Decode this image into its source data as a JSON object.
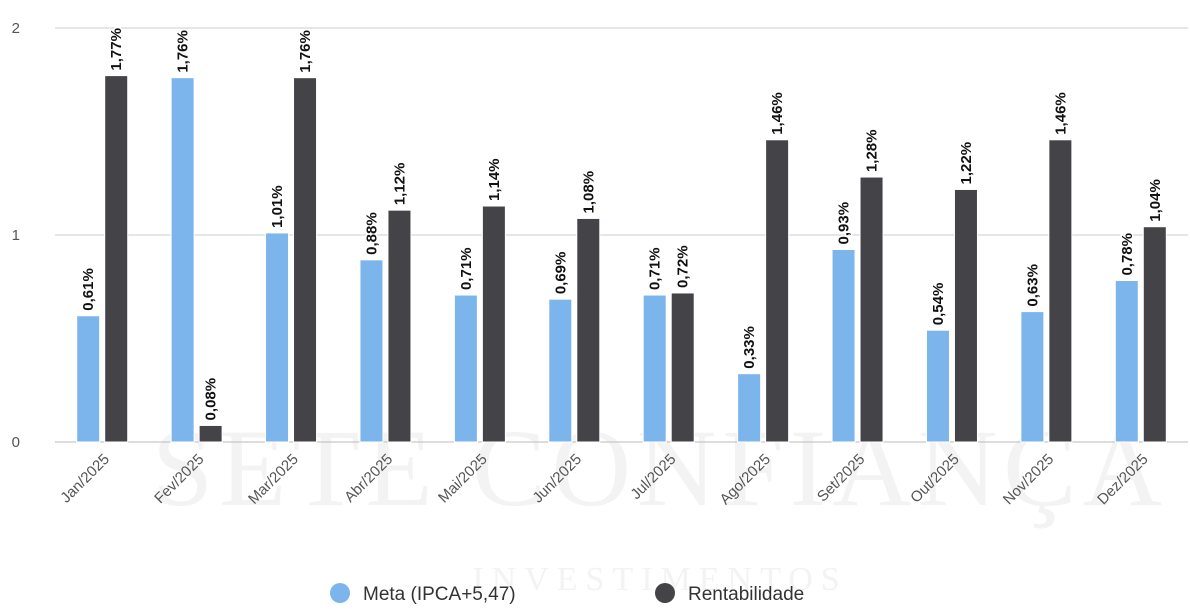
{
  "watermark": {
    "line1": "SETE CONFIANÇA",
    "line2": "INVESTIMENTOS"
  },
  "chart_data": {
    "type": "bar",
    "categories": [
      "Jan/2025",
      "Fev/2025",
      "Mar/2025",
      "Abr/2025",
      "Mai/2025",
      "Jun/2025",
      "Jul/2025",
      "Ago/2025",
      "Set/2025",
      "Out/2025",
      "Nov/2025",
      "Dez/2025"
    ],
    "series": [
      {
        "name": "Meta (IPCA+5,47)",
        "color": "#7cb5ec",
        "values": [
          0.61,
          1.76,
          1.01,
          0.88,
          0.71,
          0.69,
          0.71,
          0.33,
          0.93,
          0.54,
          0.63,
          0.78
        ],
        "labels": [
          "0,61%",
          "1,76%",
          "1,01%",
          "0,88%",
          "0,71%",
          "0,69%",
          "0,71%",
          "0,33%",
          "0,93%",
          "0,54%",
          "0,63%",
          "0,78%"
        ]
      },
      {
        "name": "Rentabilidade",
        "color": "#434348",
        "values": [
          1.77,
          0.08,
          1.76,
          1.12,
          1.14,
          1.08,
          0.72,
          1.46,
          1.28,
          1.22,
          1.46,
          1.04
        ],
        "labels": [
          "1,77%",
          "0,08%",
          "1,76%",
          "1,12%",
          "1,14%",
          "1,08%",
          "0,72%",
          "1,46%",
          "1,28%",
          "1,22%",
          "1,46%",
          "1,04%"
        ]
      }
    ],
    "ylim": [
      0,
      2
    ],
    "yticks": [
      "0",
      "1",
      "2"
    ],
    "ytick_values": [
      0,
      1,
      2
    ],
    "grid": true,
    "legend_position": "bottom-center"
  }
}
